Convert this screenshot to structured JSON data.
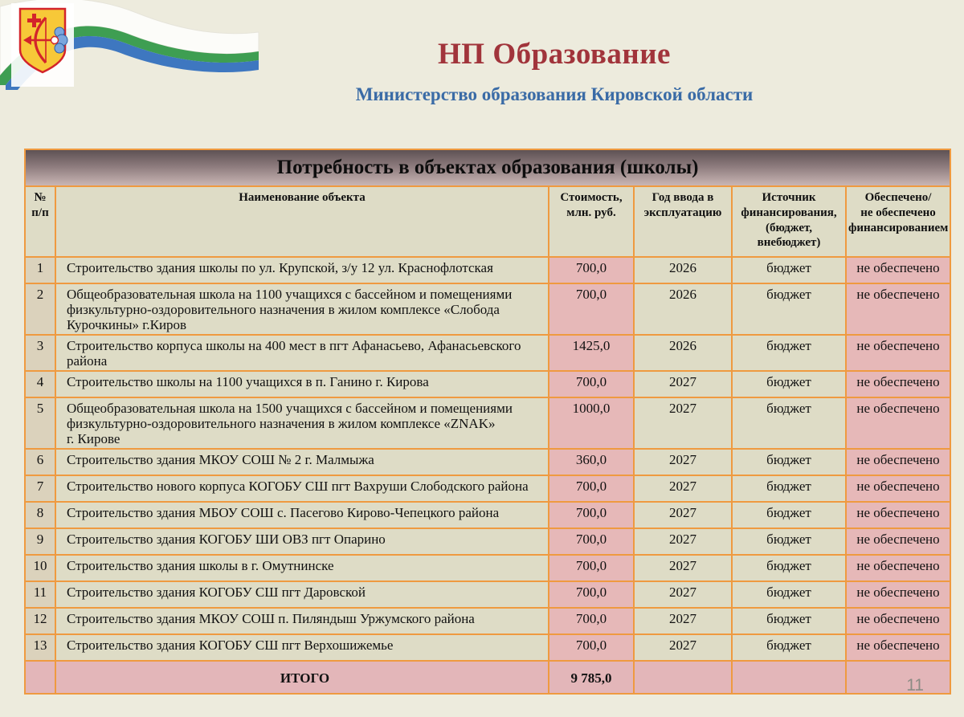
{
  "header": {
    "title": "НП Образование",
    "subtitle": "Министерство образования Кировской области"
  },
  "logo": {
    "coat_of_arms": "Герб Кировской области",
    "flag_colors": {
      "white": "#fcfcf9",
      "green": "#3e9e52",
      "blue": "#3e77c0"
    }
  },
  "table": {
    "caption": "Потребность в объектах образования (школы)",
    "columns": [
      {
        "key": "num",
        "label": "№\nп/п"
      },
      {
        "key": "name",
        "label": "Наименование  объекта"
      },
      {
        "key": "cost",
        "label": "Стоимость,\nмлн. руб."
      },
      {
        "key": "year",
        "label": "Год ввода в\nэксплуатацию"
      },
      {
        "key": "source",
        "label": "Источник\nфинансирования,\n(бюджет,\nвнебюджет)"
      },
      {
        "key": "status",
        "label": "Обеспечено/\nне обеспечено\nфинансированием"
      }
    ],
    "rows": [
      {
        "num": "1",
        "name": "Строительство здания школы по ул. Крупской, з/у 12 ул. Краснофлотская",
        "cost": "700,0",
        "year": "2026",
        "source": "бюджет",
        "status": "не обеспечено"
      },
      {
        "num": "2",
        "name": "Общеобразовательная школа на 1100 учащихся с бассейном и помещениями\nфизкультурно-оздоровительного назначения  в жилом комплексе «Слобода\nКурочкины» г.Киров",
        "cost": "700,0",
        "year": "2026",
        "source": "бюджет",
        "status": "не обеспечено"
      },
      {
        "num": "3",
        "name": "Строительство корпуса школы на 400 мест в пгт Афанасьево, Афанасьевского\nрайона",
        "cost": "1425,0",
        "year": "2026",
        "source": "бюджет",
        "status": "не обеспечено"
      },
      {
        "num": "4",
        "name": "Строительство школы на 1100 учащихся в п. Ганино г. Кирова",
        "cost": "700,0",
        "year": "2027",
        "source": "бюджет",
        "status": "не обеспечено"
      },
      {
        "num": "5",
        "name": "Общеобразовательная школа на 1500 учащихся с бассейном и помещениями\nфизкультурно-оздоровительного назначения в жилом комплексе «ZNAK»\nг. Кирове",
        "cost": "1000,0",
        "year": "2027",
        "source": "бюджет",
        "status": "не обеспечено"
      },
      {
        "num": "6",
        "name": "Строительство здания  МКОУ СОШ № 2 г. Малмыжа",
        "cost": "360,0",
        "year": "2027",
        "source": "бюджет",
        "status": "не обеспечено"
      },
      {
        "num": "7",
        "name": "Строительство нового корпуса КОГОБУ СШ пгт Вахруши Слободского района",
        "cost": "700,0",
        "year": "2027",
        "source": "бюджет",
        "status": "не обеспечено"
      },
      {
        "num": "8",
        "name": "Строительство здания МБОУ СОШ с. Пасегово Кирово-Чепецкого района",
        "cost": "700,0",
        "year": "2027",
        "source": "бюджет",
        "status": "не обеспечено"
      },
      {
        "num": "9",
        "name": "Строительство здания КОГОБУ ШИ ОВЗ пгт Опарино",
        "cost": "700,0",
        "year": "2027",
        "source": "бюджет",
        "status": "не обеспечено"
      },
      {
        "num": "10",
        "name": "Строительство здания школы в г. Омутнинске",
        "cost": "700,0",
        "year": "2027",
        "source": "бюджет",
        "status": "не обеспечено"
      },
      {
        "num": "11",
        "name": "Строительство здания КОГОБУ СШ пгт Даровской",
        "cost": "700,0",
        "year": "2027",
        "source": "бюджет",
        "status": "не обеспечено"
      },
      {
        "num": "12",
        "name": "Строительство здания МКОУ СОШ п. Пиляндыш Уржумского района",
        "cost": "700,0",
        "year": "2027",
        "source": "бюджет",
        "status": "не обеспечено"
      },
      {
        "num": "13",
        "name": "Строительство здания КОГОБУ СШ пгт Верхошижемье",
        "cost": "700,0",
        "year": "2027",
        "source": "бюджет",
        "status": "не обеспечено"
      }
    ],
    "total": {
      "num": "",
      "name": "ИТОГО",
      "cost": "9 785,0",
      "year": "",
      "source": "",
      "status": ""
    }
  },
  "footer": {
    "page_number": "11"
  },
  "colors": {
    "background": "#edebdd",
    "table_border_orange": "#ef9a40",
    "cell_beige": "#dedcc6",
    "cell_tan": "#dbd2bc",
    "cell_pink": "#e6b8b8",
    "total_pink": "#e3b6b9",
    "title_red": "#a1343b",
    "subtitle_blue": "#3a6ba6"
  }
}
